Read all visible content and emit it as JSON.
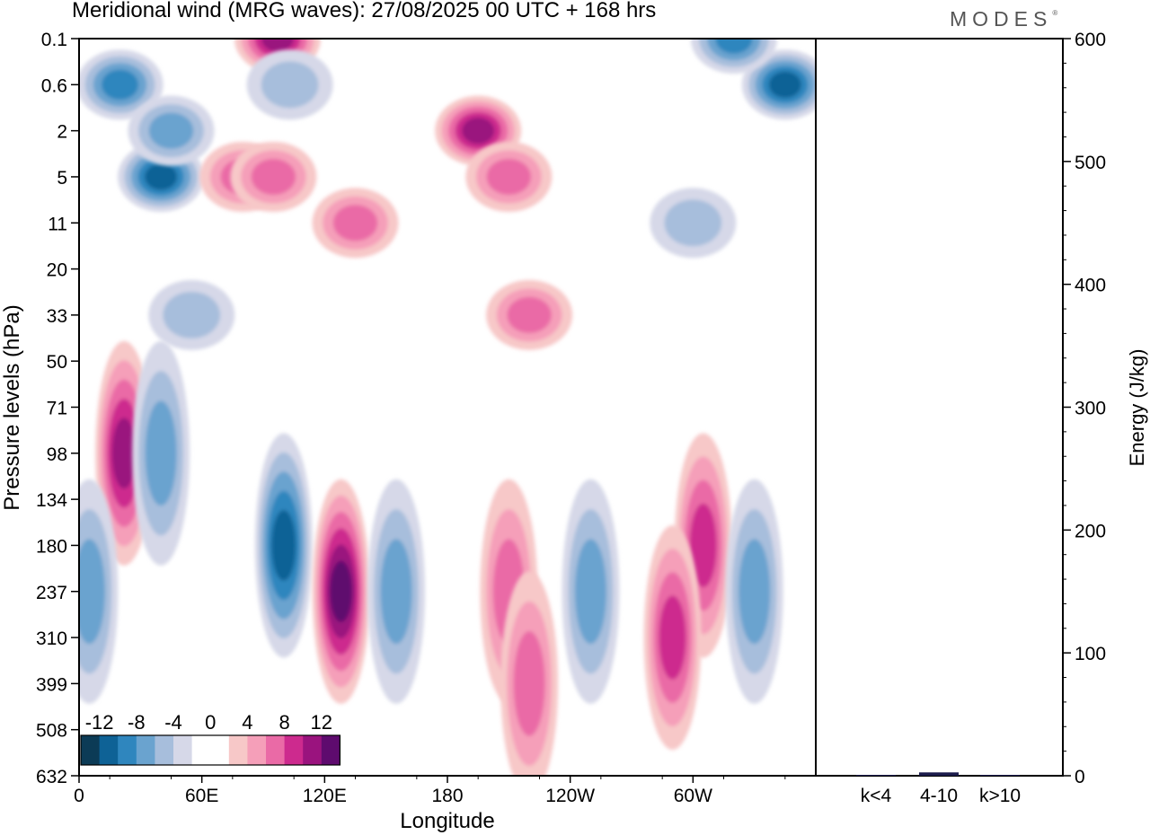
{
  "chart_data": [
    {
      "type": "heatmap",
      "title": "Meridional wind (MRG waves):  27/08/2025  00 UTC  + 168 hrs",
      "xlabel": "Longitude",
      "ylabel": "Pressure levels (hPa)",
      "x_ticks": [
        "0",
        "60E",
        "120E",
        "180",
        "120W",
        "60W"
      ],
      "x_tick_degrees": [
        0,
        60,
        120,
        180,
        240,
        300
      ],
      "xlim": [
        0,
        360
      ],
      "y_ticks": [
        "0.1",
        "0.6",
        "2",
        "5",
        "11",
        "20",
        "33",
        "50",
        "71",
        "98",
        "134",
        "180",
        "237",
        "310",
        "399",
        "508",
        "632"
      ],
      "colorbar": {
        "labels": [
          "-12",
          "-8",
          "-4",
          "0",
          "4",
          "8",
          "12"
        ],
        "colors": [
          "#0c3b56",
          "#0e6296",
          "#2f86be",
          "#6aa3cf",
          "#a7bedc",
          "#d6d8e8",
          "#ffffff",
          "#ffffff",
          "#f7c8c8",
          "#f59fb9",
          "#ea6aa6",
          "#cd2a8e",
          "#9a137e",
          "#5e0b6e"
        ]
      },
      "contour_blobs": [
        {
          "lon": 20,
          "p": "0.6",
          "v": -8
        },
        {
          "lon": 40,
          "p": "5",
          "v": -10
        },
        {
          "lon": 45,
          "p": "2",
          "v": -6
        },
        {
          "lon": 80,
          "p": "5",
          "v": 6
        },
        {
          "lon": 97,
          "p": "0.1",
          "v": 9
        },
        {
          "lon": 103,
          "p": "0.6",
          "v": -4
        },
        {
          "lon": 95,
          "p": "5",
          "v": 6
        },
        {
          "lon": 135,
          "p": "11",
          "v": 5
        },
        {
          "lon": 195,
          "p": "2",
          "v": 9
        },
        {
          "lon": 210,
          "p": "5",
          "v": 6
        },
        {
          "lon": 345,
          "p": "0.6",
          "v": -9
        },
        {
          "lon": 320,
          "p": "0.1",
          "v": -7
        },
        {
          "lon": 300,
          "p": "11",
          "v": -4
        },
        {
          "lon": 220,
          "p": "33",
          "v": 5
        },
        {
          "lon": 55,
          "p": "33",
          "v": -4
        },
        {
          "lon": 22,
          "p": "98",
          "v": 10
        },
        {
          "lon": 40,
          "p": "98",
          "v": -6
        },
        {
          "lon": 100,
          "p": "180",
          "v": -9
        },
        {
          "lon": 128,
          "p": "237",
          "v": 11
        },
        {
          "lon": 155,
          "p": "237",
          "v": -5
        },
        {
          "lon": 210,
          "p": "237",
          "v": 6
        },
        {
          "lon": 250,
          "p": "237",
          "v": -5
        },
        {
          "lon": 305,
          "p": "180",
          "v": 8
        },
        {
          "lon": 290,
          "p": "310",
          "v": 7
        },
        {
          "lon": 330,
          "p": "237",
          "v": -5
        },
        {
          "lon": 5,
          "p": "237",
          "v": -5
        },
        {
          "lon": 220,
          "p": "399",
          "v": 5
        }
      ]
    },
    {
      "type": "bar",
      "ylabel": "Energy (J/kg)",
      "categories": [
        "k<4",
        "4-10",
        "k>10"
      ],
      "values": [
        0,
        2,
        0
      ],
      "ylim": [
        0,
        600
      ],
      "y_ticks": [
        "0",
        "100",
        "200",
        "300",
        "400",
        "500",
        "600"
      ]
    }
  ],
  "logo": "MODES"
}
